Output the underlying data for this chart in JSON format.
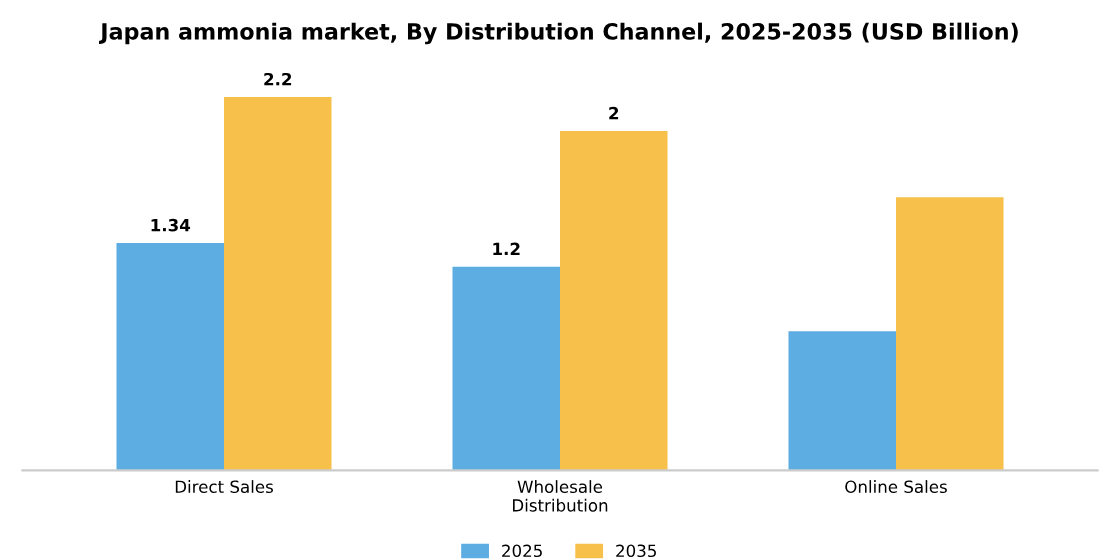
{
  "chart_data": {
    "type": "bar",
    "title": "Japan ammonia market, By Distribution Channel, 2025-2035 (USD Billion)",
    "categories": [
      "Direct Sales",
      "Wholesale\nDistribution",
      "Online Sales"
    ],
    "series": [
      {
        "name": "2025",
        "color": "#5dade2",
        "values": [
          1.34,
          1.2,
          0.82
        ],
        "value_labels": [
          "1.34",
          "1.2",
          null
        ]
      },
      {
        "name": "2035",
        "color": "#f7c04a",
        "values": [
          2.2,
          2.0,
          1.61
        ],
        "value_labels": [
          "2.2",
          "2",
          null
        ]
      }
    ],
    "tick_labels": "x",
    "grid": false,
    "legend": "bottom"
  }
}
